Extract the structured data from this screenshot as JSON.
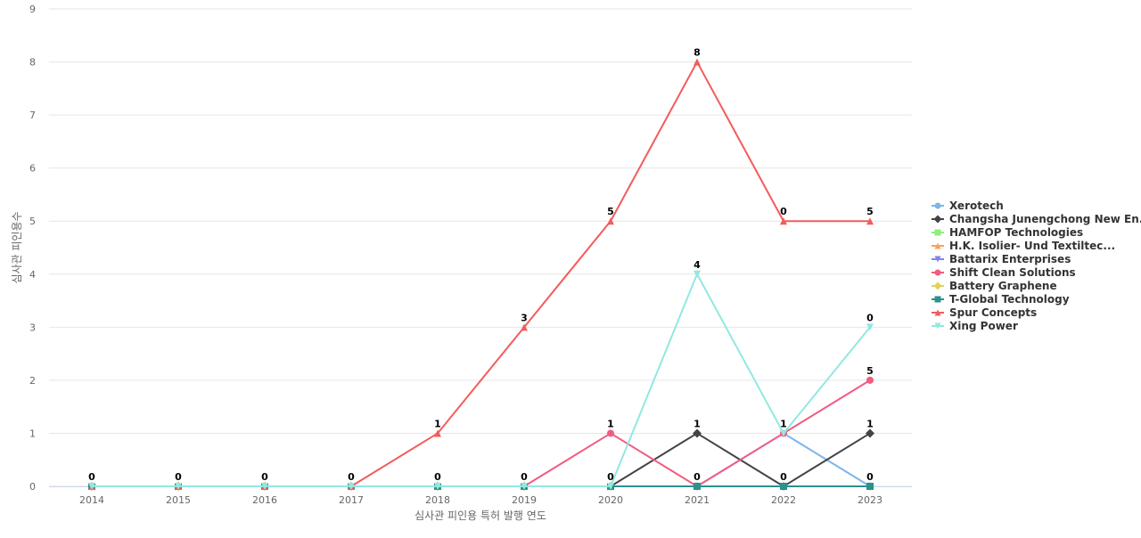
{
  "chart_data": {
    "type": "line",
    "title": "",
    "xlabel": "심사관 피인용 특허 발행 연도",
    "ylabel": "심사관 피인용수",
    "x": [
      "2014",
      "2015",
      "2016",
      "2017",
      "2018",
      "2019",
      "2020",
      "2021",
      "2022",
      "2023"
    ],
    "ylim": [
      0,
      9
    ],
    "yticks": [
      0,
      1,
      2,
      3,
      4,
      5,
      6,
      7,
      8,
      9
    ],
    "grid": true,
    "legend_position": "right",
    "series": [
      {
        "name": "Xerotech",
        "color": "#7cb5ec",
        "marker": "circle",
        "values": [
          0,
          0,
          0,
          0,
          0,
          0,
          0,
          0,
          1,
          0
        ]
      },
      {
        "name": "Changsha Junengchong New En...",
        "color": "#434348",
        "marker": "diamond",
        "values": [
          0,
          0,
          0,
          0,
          0,
          0,
          0,
          1,
          0,
          1
        ]
      },
      {
        "name": "HAMFOP Technologies",
        "color": "#90ed7d",
        "marker": "square",
        "values": [
          0,
          0,
          0,
          0,
          0,
          0,
          0,
          0,
          0,
          0
        ]
      },
      {
        "name": "H.K. Isolier- Und Textiltec...",
        "color": "#f7a35c",
        "marker": "triangle",
        "values": [
          0,
          0,
          0,
          0,
          0,
          0,
          0,
          0,
          0,
          0
        ]
      },
      {
        "name": "Battarix Enterprises",
        "color": "#8085e9",
        "marker": "triangle-down",
        "values": [
          0,
          0,
          0,
          0,
          0,
          0,
          0,
          0,
          0,
          0
        ]
      },
      {
        "name": "Shift Clean Solutions",
        "color": "#f15c80",
        "marker": "circle",
        "values": [
          0,
          0,
          0,
          0,
          0,
          0,
          1,
          0,
          1,
          2
        ]
      },
      {
        "name": "Battery Graphene",
        "color": "#e4d354",
        "marker": "diamond",
        "values": [
          0,
          0,
          0,
          0,
          0,
          0,
          0,
          0,
          0,
          0
        ]
      },
      {
        "name": "T-Global Technology",
        "color": "#2b908f",
        "marker": "square",
        "values": [
          0,
          0,
          0,
          0,
          0,
          0,
          0,
          0,
          0,
          0
        ]
      },
      {
        "name": "Spur Concepts",
        "color": "#f45b5b",
        "marker": "triangle",
        "values": [
          0,
          0,
          0,
          0,
          1,
          3,
          5,
          8,
          5,
          5
        ]
      },
      {
        "name": "Xing Power",
        "color": "#91e8e1",
        "marker": "triangle-down",
        "values": [
          0,
          0,
          0,
          0,
          0,
          0,
          0,
          4,
          1,
          3
        ]
      }
    ],
    "data_labels": [
      "0",
      "0",
      "0",
      "0",
      "1",
      "0",
      "0",
      "0",
      "0",
      "0",
      "0",
      "3",
      "5",
      "1",
      "1",
      "8",
      "4",
      "1",
      "0",
      "1",
      "5",
      "0",
      "5",
      "3",
      "2",
      "1",
      "0"
    ]
  }
}
